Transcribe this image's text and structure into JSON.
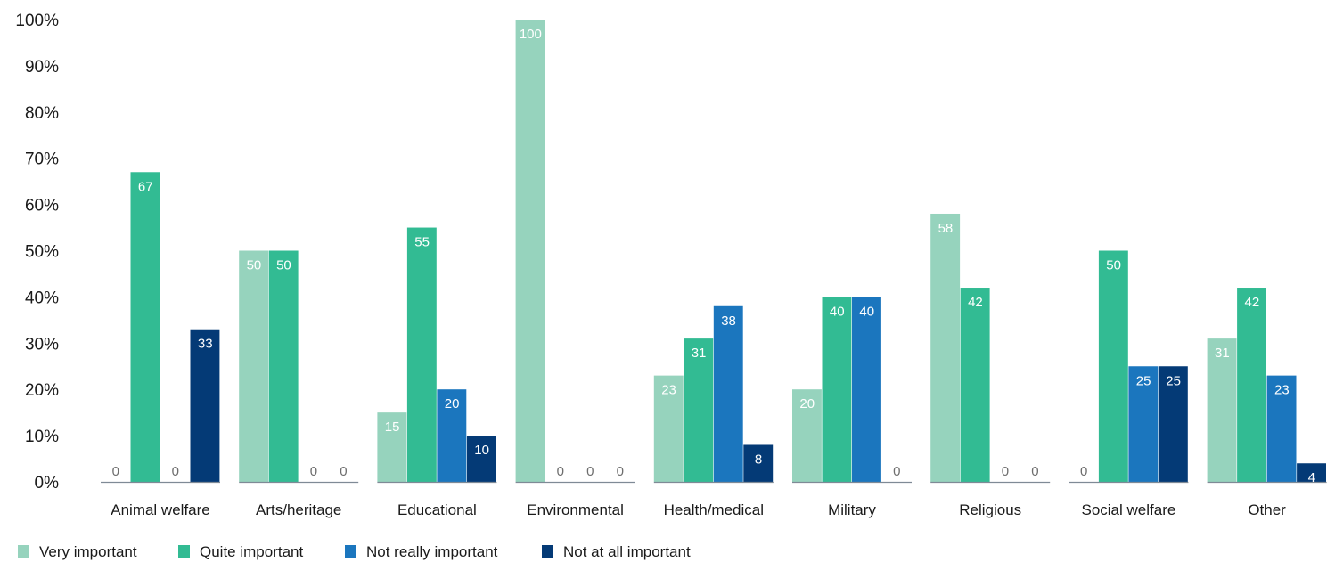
{
  "chart_data": {
    "type": "bar",
    "title": "",
    "xlabel": "",
    "ylabel": "",
    "ylim": [
      0,
      100
    ],
    "y_ticks": [
      "0%",
      "10%",
      "20%",
      "30%",
      "40%",
      "50%",
      "60%",
      "70%",
      "80%",
      "90%",
      "100%"
    ],
    "grid": false,
    "legend_position": "bottom-left",
    "categories": [
      "Animal welfare",
      "Arts/heritage",
      "Educational",
      "Environmental",
      "Health/medical",
      "Military",
      "Religious",
      "Social welfare",
      "Other"
    ],
    "series": [
      {
        "name": "Very important",
        "color": "#96d3bd",
        "values": [
          0,
          50,
          15,
          100,
          23,
          20,
          58,
          0,
          31
        ]
      },
      {
        "name": "Quite important",
        "color": "#32bb93",
        "values": [
          67,
          50,
          55,
          0,
          31,
          40,
          42,
          50,
          42
        ]
      },
      {
        "name": "Not really important",
        "color": "#1b76be",
        "values": [
          0,
          0,
          20,
          0,
          38,
          40,
          0,
          25,
          23
        ]
      },
      {
        "name": "Not at all important",
        "color": "#043a76",
        "values": [
          33,
          0,
          10,
          0,
          8,
          0,
          0,
          25,
          4
        ]
      }
    ],
    "data_labels": [
      [
        "0",
        "67",
        "0",
        "33"
      ],
      [
        "50",
        "50",
        "0",
        "0"
      ],
      [
        "15",
        "55",
        "20",
        "10"
      ],
      [
        "100",
        "0",
        "0",
        "0"
      ],
      [
        "23",
        "31",
        "38",
        "8"
      ],
      [
        "20",
        "40",
        "40",
        "0"
      ],
      [
        "58",
        "42",
        "0",
        "0"
      ],
      [
        "0",
        "50",
        "25",
        "25"
      ],
      [
        "31",
        "42",
        "23",
        "4"
      ]
    ]
  }
}
